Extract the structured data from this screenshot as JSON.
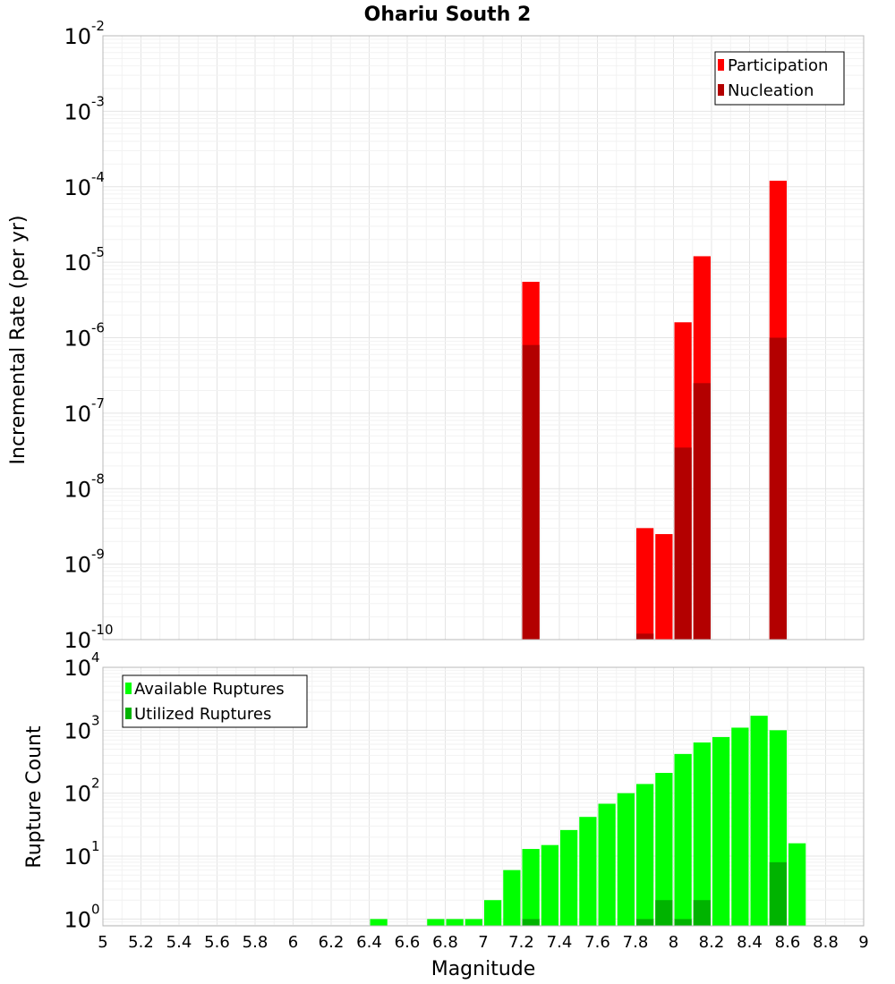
{
  "title": "Ohariu South 2",
  "colors": {
    "participation": "#ff0000",
    "nucleation": "#b30000",
    "available": "#00ff00",
    "utilized": "#00b300",
    "grid_major": "#e4e4e4",
    "grid_minor": "#f2f2f2",
    "frame": "#b8b8b8"
  },
  "chart_data": [
    {
      "type": "bar",
      "ylabel": "Incremental Rate (per yr)",
      "xlabel": "",
      "yscale": "log",
      "xlim": [
        5,
        9
      ],
      "ylim": [
        1e-10,
        0.01
      ],
      "y_tick_exponents": [
        "-10",
        "-9",
        "-8",
        "-7",
        "-6",
        "-5",
        "-4",
        "-3",
        "-2"
      ],
      "y_tick_base": "10",
      "bin_width": 0.1,
      "grid": true,
      "legend_position": "top-right",
      "series": [
        {
          "name": "Participation",
          "color": "#ff0000",
          "x": [
            7.25,
            7.85,
            7.95,
            8.05,
            8.15,
            8.55
          ],
          "values": [
            5.5e-06,
            3e-09,
            2.5e-09,
            1.6e-06,
            1.2e-05,
            0.00012
          ]
        },
        {
          "name": "Nucleation",
          "color": "#b30000",
          "x": [
            7.25,
            7.85,
            8.05,
            8.15,
            8.55
          ],
          "values": [
            8e-07,
            1.2e-10,
            3.5e-08,
            2.5e-07,
            1e-06
          ]
        }
      ]
    },
    {
      "type": "bar",
      "ylabel": "Rupture Count",
      "xlabel": "Magnitude",
      "yscale": "log",
      "xlim": [
        5,
        9
      ],
      "ylim": [
        0.78,
        10000
      ],
      "y_tick_exponents": [
        "0",
        "1",
        "2",
        "3",
        "4"
      ],
      "y_tick_base": "10",
      "x_ticks": [
        "5",
        "5.2",
        "5.4",
        "5.6",
        "5.8",
        "6",
        "6.2",
        "6.4",
        "6.6",
        "6.8",
        "7",
        "7.2",
        "7.4",
        "7.6",
        "7.8",
        "8",
        "8.2",
        "8.4",
        "8.6",
        "8.8",
        "9"
      ],
      "bin_width": 0.1,
      "grid": true,
      "legend_position": "top-left",
      "series": [
        {
          "name": "Available Ruptures",
          "color": "#00ff00",
          "x": [
            6.45,
            6.75,
            6.85,
            6.95,
            7.05,
            7.15,
            7.25,
            7.35,
            7.45,
            7.55,
            7.65,
            7.75,
            7.85,
            7.95,
            8.05,
            8.15,
            8.25,
            8.35,
            8.45,
            8.55,
            8.65
          ],
          "values": [
            1,
            1,
            1,
            1,
            2,
            6,
            13,
            15,
            26,
            42,
            68,
            100,
            140,
            210,
            420,
            640,
            780,
            1100,
            1700,
            1000,
            16
          ]
        },
        {
          "name": "Utilized Ruptures",
          "color": "#00b300",
          "x": [
            7.25,
            7.85,
            7.95,
            8.05,
            8.15,
            8.55
          ],
          "values": [
            1,
            1,
            2,
            1,
            2,
            8
          ]
        }
      ]
    }
  ]
}
